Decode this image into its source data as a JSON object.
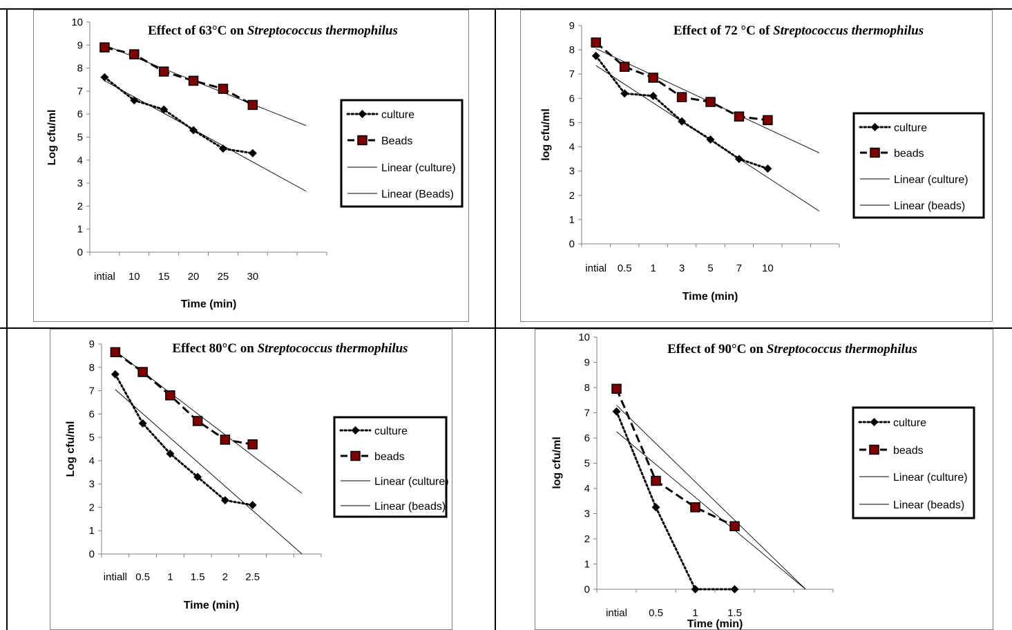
{
  "chart_data": [
    {
      "type": "line",
      "title_prefix": "Effect of 63°C on ",
      "title_species": "Streptococcus thermophilus",
      "xlabel": "Time (min)",
      "ylabel": "Log cfu/ml",
      "categories": [
        "intial",
        "10",
        "15",
        "20",
        "25",
        "30"
      ],
      "ylim": [
        0,
        10
      ],
      "yticks": [
        "0",
        "1",
        "2",
        "3",
        "4",
        "5",
        "6",
        "7",
        "8",
        "9",
        "10"
      ],
      "series": [
        {
          "name": "culture",
          "values": [
            7.6,
            6.6,
            6.2,
            5.3,
            4.5,
            4.3
          ]
        },
        {
          "name": "Beads",
          "values": [
            8.9,
            8.6,
            7.85,
            7.45,
            7.1,
            6.4
          ]
        }
      ],
      "trendlines": [
        {
          "name": "Linear (culture)",
          "start": 7.45,
          "end": 2.65
        },
        {
          "name": "Linear (Beads)",
          "start": 9.0,
          "end": 5.5
        }
      ],
      "grid": false,
      "legend": "right"
    },
    {
      "type": "line",
      "title_prefix": "Effect of 72  °C of ",
      "title_species": "Streptococcus thermophilus",
      "xlabel": "Time (min)",
      "ylabel": "log cfu/ml",
      "categories": [
        "intial",
        "0.5",
        "1",
        "3",
        "5",
        "7",
        "10"
      ],
      "ylim": [
        0,
        9
      ],
      "yticks": [
        "0",
        "1",
        "2",
        "3",
        "4",
        "5",
        "6",
        "7",
        "8",
        "9"
      ],
      "series": [
        {
          "name": "culture",
          "values": [
            7.75,
            6.2,
            6.1,
            5.05,
            4.3,
            3.5,
            3.1
          ]
        },
        {
          "name": "beads",
          "values": [
            8.3,
            7.3,
            6.85,
            6.05,
            5.85,
            5.25,
            5.1
          ]
        }
      ],
      "trendlines": [
        {
          "name": "Linear (culture)",
          "start": 7.35,
          "end": 1.35
        },
        {
          "name": "Linear (beads)",
          "start": 8.05,
          "end": 3.75
        }
      ],
      "grid": false,
      "legend": "right"
    },
    {
      "type": "line",
      "title_prefix": "Effect 80°C on ",
      "title_species": "Streptococcus thermophilus",
      "xlabel": "Time (min)",
      "ylabel": "Log cfu/ml",
      "categories": [
        "intiall",
        "0.5",
        "1",
        "1.5",
        "2",
        "2.5"
      ],
      "ylim": [
        0,
        9
      ],
      "yticks": [
        "0",
        "1",
        "2",
        "3",
        "4",
        "5",
        "6",
        "7",
        "8",
        "9"
      ],
      "series": [
        {
          "name": "culture",
          "values": [
            7.7,
            5.6,
            4.3,
            3.3,
            2.3,
            2.1
          ]
        },
        {
          "name": "beads",
          "values": [
            8.65,
            7.8,
            6.8,
            5.7,
            4.9,
            4.7
          ]
        }
      ],
      "trendlines": [
        {
          "name": "Linear (culture)",
          "start": 7.05,
          "end": 0.0
        },
        {
          "name": "Linear (beads)",
          "start": 8.7,
          "end": 2.6
        }
      ],
      "grid": false,
      "legend": "right"
    },
    {
      "type": "line",
      "title_prefix": "Effect of 90°C on ",
      "title_species": "Streptococcus thermophilus",
      "xlabel": "Time (min)",
      "ylabel": "log cfu/ml",
      "categories": [
        "intial",
        "0.5",
        "1",
        "1.5"
      ],
      "ylim": [
        0,
        10
      ],
      "yticks": [
        "0",
        "1",
        "2",
        "3",
        "4",
        "5",
        "6",
        "7",
        "8",
        "9",
        "10"
      ],
      "series": [
        {
          "name": "culture",
          "values": [
            7.05,
            3.25,
            0,
            0
          ]
        },
        {
          "name": "beads",
          "values": [
            7.95,
            4.3,
            3.25,
            2.5
          ]
        }
      ],
      "trendlines": [
        {
          "name": "Linear (culture)",
          "start": 6.25,
          "end": 0.0
        },
        {
          "name": "Linear (beads)",
          "start": 7.3,
          "end": 0.0
        }
      ],
      "grid": false,
      "legend": "right"
    }
  ]
}
